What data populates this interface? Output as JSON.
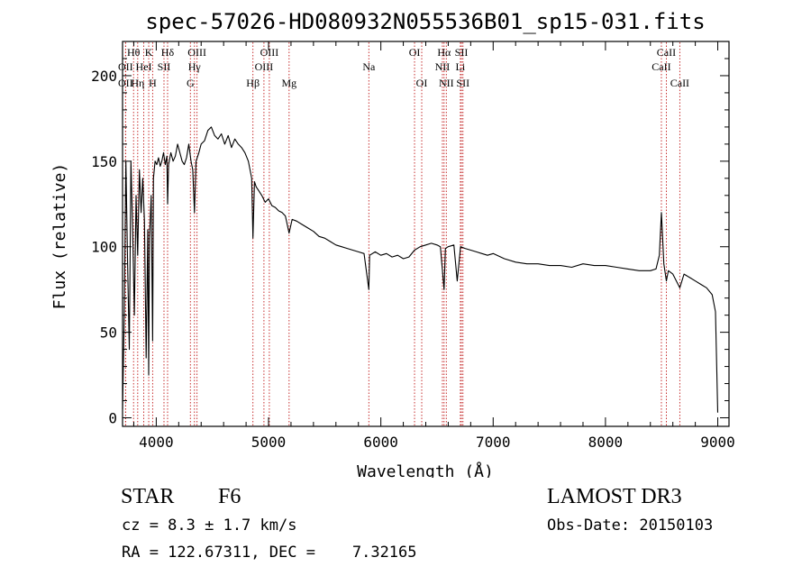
{
  "chart_data": {
    "type": "line",
    "title": "spec-57026-HD080932N055536B01_sp15-031.fits",
    "xlabel": "Wavelength (Å)",
    "ylabel": "Flux (relative)",
    "xlim": [
      3700,
      9100
    ],
    "ylim": [
      -5,
      220
    ],
    "xticks": [
      4000,
      5000,
      6000,
      7000,
      8000,
      9000
    ],
    "yticks": [
      0,
      50,
      100,
      150,
      200
    ],
    "grid": false,
    "series": [
      {
        "x": [
          3700,
          3715,
          3730,
          3745,
          3760,
          3775,
          3790,
          3805,
          3820,
          3835,
          3850,
          3865,
          3880,
          3895,
          3910,
          3925,
          3933,
          3940,
          3955,
          3968,
          3975,
          3990,
          4005,
          4020,
          4035,
          4050,
          4065,
          4080,
          4095,
          4101,
          4110,
          4130,
          4150,
          4170,
          4190,
          4210,
          4230,
          4250,
          4270,
          4290,
          4310,
          4325,
          4340,
          4355,
          4380,
          4400,
          4430,
          4460,
          4490,
          4520,
          4550,
          4580,
          4610,
          4640,
          4670,
          4700,
          4730,
          4760,
          4790,
          4820,
          4850,
          4861,
          4875,
          4890,
          4910,
          4940,
          4970,
          5000,
          5030,
          5060,
          5090,
          5120,
          5150,
          5183,
          5210,
          5250,
          5300,
          5350,
          5400,
          5450,
          5500,
          5550,
          5600,
          5650,
          5700,
          5750,
          5800,
          5850,
          5893,
          5900,
          5950,
          6000,
          6050,
          6100,
          6150,
          6200,
          6250,
          6300,
          6350,
          6400,
          6450,
          6500,
          6530,
          6563,
          6575,
          6600,
          6650,
          6680,
          6710,
          6750,
          6800,
          6850,
          6900,
          6950,
          7000,
          7100,
          7200,
          7300,
          7400,
          7500,
          7600,
          7700,
          7800,
          7900,
          8000,
          8100,
          8200,
          8300,
          8400,
          8450,
          8480,
          8498,
          8520,
          8542,
          8560,
          8600,
          8662,
          8700,
          8750,
          8800,
          8850,
          8900,
          8950,
          8980,
          9000
        ],
        "y": [
          5,
          60,
          150,
          90,
          40,
          150,
          110,
          60,
          130,
          95,
          145,
          120,
          140,
          115,
          35,
          110,
          25,
          105,
          130,
          45,
          140,
          150,
          148,
          152,
          147,
          150,
          155,
          148,
          153,
          125,
          148,
          155,
          150,
          153,
          160,
          155,
          150,
          148,
          152,
          160,
          150,
          145,
          120,
          150,
          155,
          160,
          162,
          168,
          170,
          165,
          163,
          166,
          160,
          165,
          158,
          163,
          160,
          158,
          155,
          150,
          140,
          105,
          138,
          135,
          133,
          130,
          126,
          128,
          124,
          123,
          121,
          120,
          118,
          108,
          116,
          115,
          113,
          111,
          109,
          106,
          105,
          103,
          101,
          100,
          99,
          98,
          97,
          96,
          75,
          95,
          97,
          95,
          96,
          94,
          95,
          93,
          94,
          98,
          100,
          101,
          102,
          101,
          100,
          75,
          99,
          100,
          101,
          80,
          100,
          99,
          98,
          97,
          96,
          95,
          96,
          93,
          91,
          90,
          90,
          89,
          89,
          88,
          90,
          89,
          89,
          88,
          87,
          86,
          86,
          87,
          95,
          120,
          90,
          80,
          86,
          84,
          76,
          84,
          82,
          80,
          78,
          76,
          72,
          62,
          3
        ]
      }
    ],
    "line_labels": [
      {
        "label": "Hθ",
        "x": 3798,
        "row": 1
      },
      {
        "label": "K",
        "x": 3933,
        "row": 1
      },
      {
        "label": "Hδ",
        "x": 4101,
        "row": 1
      },
      {
        "label": "OIII",
        "x": 4363,
        "row": 1
      },
      {
        "label": "OIII",
        "x": 5007,
        "row": 1
      },
      {
        "label": "OI",
        "x": 6300,
        "row": 1
      },
      {
        "label": "Hα",
        "x": 6563,
        "row": 1
      },
      {
        "label": "SII",
        "x": 6717,
        "row": 1
      },
      {
        "label": "CaII",
        "x": 8542,
        "row": 1
      },
      {
        "label": "OII",
        "x": 3727,
        "row": 2
      },
      {
        "label": "HeI",
        "x": 3889,
        "row": 2
      },
      {
        "label": "SII",
        "x": 4069,
        "row": 2
      },
      {
        "label": "Hγ",
        "x": 4340,
        "row": 2
      },
      {
        "label": "OIII",
        "x": 4959,
        "row": 2
      },
      {
        "label": "Na",
        "x": 5893,
        "row": 2
      },
      {
        "label": "NII",
        "x": 6548,
        "row": 2
      },
      {
        "label": "Li",
        "x": 6708,
        "row": 2
      },
      {
        "label": "CaII",
        "x": 8498,
        "row": 2
      },
      {
        "label": "OII",
        "x": 3727,
        "row": 3
      },
      {
        "label": "Hη",
        "x": 3835,
        "row": 3
      },
      {
        "label": "H",
        "x": 3968,
        "row": 3
      },
      {
        "label": "G",
        "x": 4304,
        "row": 3
      },
      {
        "label": "Hβ",
        "x": 4861,
        "row": 3
      },
      {
        "label": "Mg",
        "x": 5183,
        "row": 3
      },
      {
        "label": "OI",
        "x": 6364,
        "row": 3
      },
      {
        "label": "NII",
        "x": 6583,
        "row": 3
      },
      {
        "label": "SII",
        "x": 6731,
        "row": 3
      },
      {
        "label": "CaII",
        "x": 8662,
        "row": 3
      }
    ]
  },
  "info": {
    "class_label": "STAR",
    "subclass": "F6",
    "survey": "LAMOST DR3",
    "redshift_line": "cz = 8.3 ± 1.7 km/s",
    "obs_date_line": "Obs-Date: 20150103",
    "coords_line": "RA = 122.67311, DEC =    7.32165"
  }
}
